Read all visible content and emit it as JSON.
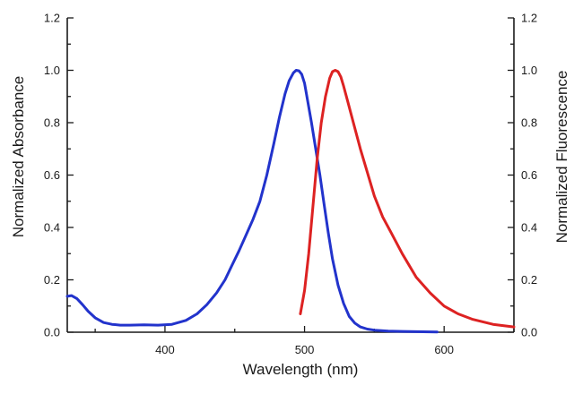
{
  "chart_data": {
    "type": "line",
    "xlabel": "Wavelength (nm)",
    "ylabel_left": "Normalized Absorbance",
    "ylabel_right": "Normalized Fluorescence",
    "xlim": [
      330,
      650
    ],
    "ylim": [
      0,
      1.2
    ],
    "x_ticks": [
      400,
      500,
      600
    ],
    "y_ticks": [
      "0.0",
      "0.2",
      "0.4",
      "0.6",
      "0.8",
      "1.0",
      "1.2"
    ],
    "grid": false,
    "series": [
      {
        "axis": "left",
        "color": "#2233cc",
        "x": [
          330,
          333,
          337,
          341,
          345,
          350,
          356,
          362,
          368,
          375,
          385,
          395,
          405,
          415,
          423,
          430,
          437,
          443,
          448,
          453,
          458,
          463,
          468,
          473,
          478,
          482,
          486,
          489,
          492,
          494,
          496,
          498,
          500,
          502,
          505,
          508,
          511,
          514,
          517,
          520,
          524,
          528,
          532,
          536,
          540,
          545,
          550,
          555,
          560,
          570,
          580,
          595
        ],
        "y": [
          0.137,
          0.14,
          0.128,
          0.105,
          0.08,
          0.055,
          0.037,
          0.03,
          0.027,
          0.027,
          0.028,
          0.027,
          0.03,
          0.045,
          0.07,
          0.105,
          0.15,
          0.2,
          0.255,
          0.31,
          0.37,
          0.43,
          0.5,
          0.6,
          0.72,
          0.82,
          0.91,
          0.96,
          0.99,
          1.0,
          0.998,
          0.985,
          0.95,
          0.89,
          0.8,
          0.7,
          0.6,
          0.49,
          0.38,
          0.28,
          0.18,
          0.11,
          0.06,
          0.035,
          0.02,
          0.012,
          0.008,
          0.006,
          0.004,
          0.003,
          0.002,
          0.001
        ]
      },
      {
        "axis": "right",
        "color": "#dd2222",
        "x": [
          497,
          500,
          503,
          506,
          509,
          512,
          515,
          518,
          520,
          522,
          524,
          526,
          528,
          531,
          535,
          540,
          545,
          550,
          556,
          562,
          570,
          580,
          590,
          600,
          610,
          620,
          635,
          650
        ],
        "y": [
          0.07,
          0.16,
          0.3,
          0.48,
          0.66,
          0.8,
          0.9,
          0.97,
          0.995,
          1.0,
          0.995,
          0.975,
          0.94,
          0.88,
          0.8,
          0.7,
          0.61,
          0.52,
          0.44,
          0.38,
          0.3,
          0.21,
          0.15,
          0.1,
          0.07,
          0.05,
          0.03,
          0.02
        ]
      }
    ]
  }
}
